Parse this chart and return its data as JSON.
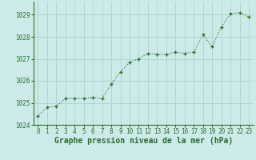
{
  "x": [
    0,
    1,
    2,
    3,
    4,
    5,
    6,
    7,
    8,
    9,
    10,
    11,
    12,
    13,
    14,
    15,
    16,
    17,
    18,
    19,
    20,
    21,
    22,
    23
  ],
  "y": [
    1024.4,
    1024.8,
    1024.85,
    1025.2,
    1025.2,
    1025.2,
    1025.25,
    1025.2,
    1025.85,
    1026.4,
    1026.85,
    1027.0,
    1027.25,
    1027.2,
    1027.2,
    1027.3,
    1027.25,
    1027.3,
    1028.1,
    1027.55,
    1028.45,
    1029.05,
    1029.1,
    1028.9
  ],
  "line_color": "#2d6e2d",
  "marker_color": "#2d6e2d",
  "bg_color": "#cceae8",
  "grid_color": "#aad4d0",
  "xlabel": "Graphe pression niveau de la mer (hPa)",
  "xlabel_color": "#2d6e2d",
  "tick_color": "#2d6e2d",
  "ylim": [
    1024.0,
    1029.6
  ],
  "yticks": [
    1024,
    1025,
    1026,
    1027,
    1028,
    1029
  ],
  "xticks": [
    0,
    1,
    2,
    3,
    4,
    5,
    6,
    7,
    8,
    9,
    10,
    11,
    12,
    13,
    14,
    15,
    16,
    17,
    18,
    19,
    20,
    21,
    22,
    23
  ],
  "title_fontsize": 7,
  "tick_fontsize": 5.5,
  "line_width": 0.8,
  "marker_size": 3.5
}
